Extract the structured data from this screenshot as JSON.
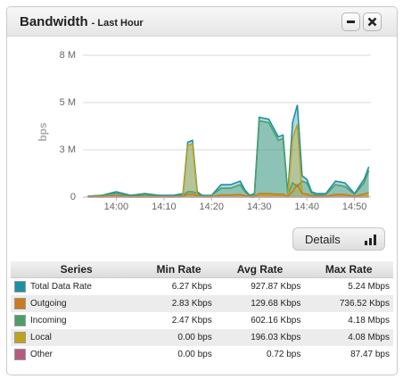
{
  "header": {
    "title": "Bandwidth",
    "subtitle": "- Last Hour"
  },
  "chart_data": {
    "type": "area",
    "y_label": "bps",
    "x": [
      "13:54",
      "13:57",
      "14:00",
      "14:03",
      "14:06",
      "14:09",
      "14:12",
      "14:14",
      "14:15",
      "14:16",
      "14:17",
      "14:18",
      "14:20",
      "14:22",
      "14:24",
      "14:26",
      "14:27",
      "14:28",
      "14:29",
      "14:30",
      "14:32",
      "14:34",
      "14:35",
      "14:36",
      "14:37",
      "14:38",
      "14:39",
      "14:40",
      "14:41",
      "14:42",
      "14:44",
      "14:46",
      "14:48",
      "14:50",
      "14:52",
      "14:53"
    ],
    "xlim": [
      "13:53",
      "14:54"
    ],
    "xticks": [
      "14:00",
      "14:10",
      "14:20",
      "14:30",
      "14:40",
      "14:50"
    ],
    "ylim": [
      0,
      8000000
    ],
    "yticks": [
      0,
      {
        "value": 2666667,
        "label": "3 M"
      },
      {
        "value": 5333333,
        "label": "5 M"
      },
      {
        "value": 8000000,
        "label": "8 M"
      }
    ],
    "grid": true,
    "series": [
      {
        "name": "Total Data Rate",
        "color": "#1d8fa6",
        "values": [
          50000,
          100000,
          300000,
          100000,
          200000,
          100000,
          100000,
          200000,
          3100000,
          3200000,
          300000,
          100000,
          100000,
          700000,
          700000,
          900000,
          400000,
          100000,
          200000,
          4500000,
          4400000,
          3400000,
          3500000,
          200000,
          4200000,
          5200000,
          1200000,
          1000000,
          300000,
          200000,
          200000,
          900000,
          800000,
          200000,
          1000000,
          1700000
        ]
      },
      {
        "name": "Outgoing",
        "color": "#c97b1e",
        "values": [
          20000,
          30000,
          80000,
          20000,
          40000,
          20000,
          20000,
          40000,
          150000,
          160000,
          60000,
          20000,
          30000,
          120000,
          120000,
          150000,
          80000,
          20000,
          40000,
          200000,
          190000,
          160000,
          170000,
          40000,
          300000,
          700000,
          200000,
          180000,
          60000,
          40000,
          40000,
          150000,
          140000,
          40000,
          170000,
          250000
        ]
      },
      {
        "name": "Incoming",
        "color": "#4d9f68",
        "values": [
          50000,
          100000,
          200000,
          50000,
          150000,
          50000,
          50000,
          100000,
          300000,
          300000,
          200000,
          50000,
          100000,
          500000,
          500000,
          700000,
          300000,
          50000,
          150000,
          4300000,
          4200000,
          3200000,
          3300000,
          150000,
          800000,
          600000,
          900000,
          800000,
          200000,
          100000,
          150000,
          700000,
          600000,
          150000,
          800000,
          1500000
        ]
      },
      {
        "name": "Local",
        "color": "#bfa31b",
        "values": [
          0,
          0,
          50000,
          0,
          0,
          0,
          0,
          50000,
          2900000,
          3000000,
          100000,
          0,
          0,
          100000,
          100000,
          100000,
          50000,
          0,
          0,
          100000,
          100000,
          100000,
          100000,
          0,
          3300000,
          4100000,
          200000,
          100000,
          0,
          0,
          0,
          100000,
          100000,
          0,
          100000,
          100000
        ]
      },
      {
        "name": "Other",
        "color": "#b65b7e",
        "values": [
          0,
          0,
          0,
          0,
          0,
          0,
          0,
          0,
          80,
          0,
          0,
          0,
          0,
          0,
          0,
          0,
          0,
          0,
          0,
          0,
          0,
          0,
          0,
          0,
          0,
          87,
          0,
          0,
          0,
          0,
          0,
          0,
          0,
          0,
          0,
          0
        ]
      }
    ]
  },
  "details_button": "Details",
  "table": {
    "columns": [
      "Series",
      "Min Rate",
      "Avg Rate",
      "Max Rate"
    ],
    "rows": [
      [
        "6.27 Kbps",
        "927.87 Kbps",
        "5.24 Mbps"
      ],
      [
        "2.83 Kbps",
        "129.68 Kbps",
        "736.52 Kbps"
      ],
      [
        "2.47 Kbps",
        "602.16 Kbps",
        "4.18 Mbps"
      ],
      [
        "0.00 bps",
        "196.03 Kbps",
        "4.08 Mbps"
      ],
      [
        "0.00 bps",
        "0.72 bps",
        "87.47 bps"
      ]
    ]
  }
}
